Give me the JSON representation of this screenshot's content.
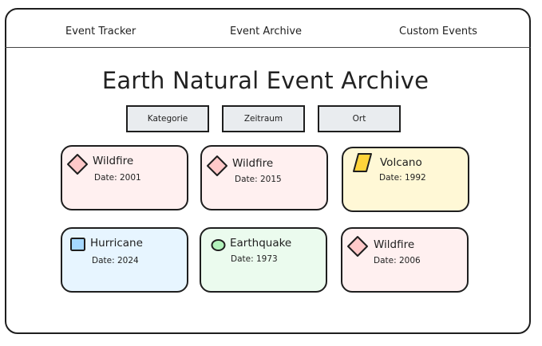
{
  "nav": {
    "links": [
      "Event Tracker",
      "Event Archive",
      "Custom Events"
    ]
  },
  "page": {
    "title": "Earth Natural Event Archive"
  },
  "filters": [
    "Kategorie",
    "Zeitraum",
    "Ort"
  ],
  "colors": {
    "wildfire_bg": "#fff0f0",
    "wildfire_icon": "#ffc9c9",
    "volcano_bg": "#fff8d6",
    "volcano_icon": "#ffd43b",
    "hurricane_bg": "#e7f5ff",
    "hurricane_icon": "#a5d8ff",
    "earthquake_bg": "#ebfbee",
    "earthquake_icon": "#b2f2bb"
  },
  "events": [
    {
      "type": "Wildfire",
      "date": "Date: 2001",
      "icon": "diamond-icon"
    },
    {
      "type": "Wildfire",
      "date": "Date: 2015",
      "icon": "diamond-icon"
    },
    {
      "type": "Volcano",
      "date": "Date: 1992",
      "icon": "parallelogram-icon"
    },
    {
      "type": "Hurricane",
      "date": "Date: 2024",
      "icon": "square-icon"
    },
    {
      "type": "Earthquake",
      "date": "Date: 1973",
      "icon": "ellipse-icon"
    },
    {
      "type": "Wildfire",
      "date": "Date: 2006",
      "icon": "diamond-icon"
    }
  ]
}
